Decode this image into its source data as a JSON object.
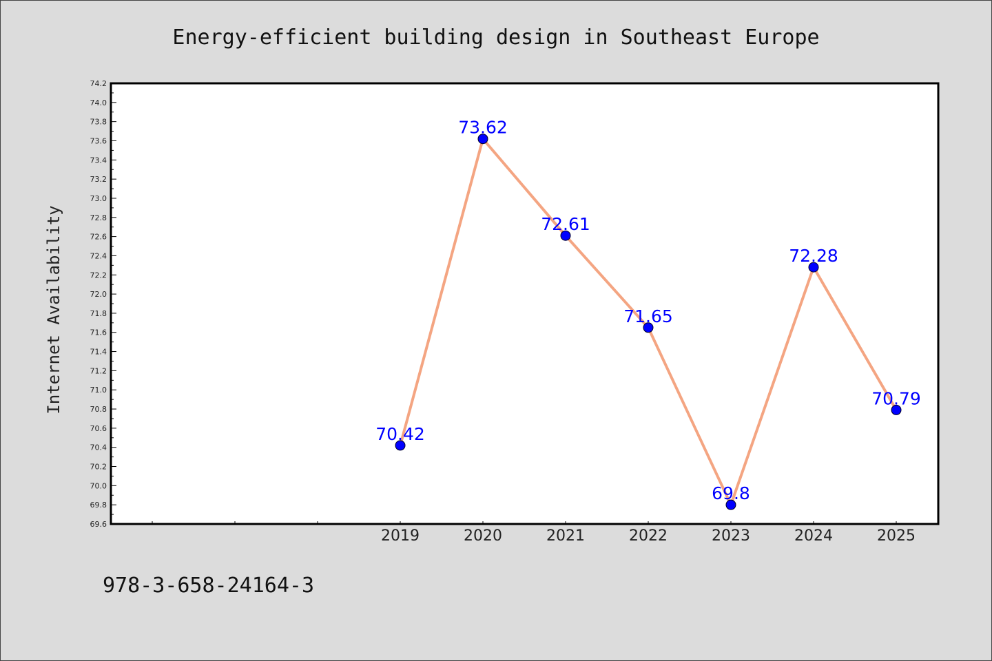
{
  "chart_data": {
    "type": "line",
    "title": "Energy-efficient building design in Southeast Europe",
    "xlabel": "",
    "ylabel": "Internet Availability",
    "categories": [
      "",
      "",
      "",
      "2019",
      "2020",
      "2021",
      "2022",
      "2023",
      "2024",
      "2025"
    ],
    "series": [
      {
        "values": [
          null,
          null,
          null,
          70.42,
          73.62,
          72.61,
          71.65,
          69.8,
          72.28,
          70.79
        ],
        "labels": [
          "",
          "",
          "",
          "70.42",
          "73.62",
          "72.61",
          "71.65",
          "69.8",
          "72.28",
          "70.79"
        ]
      }
    ],
    "ylim": [
      69.6,
      74.2
    ],
    "y_major_step": 0.2,
    "grid": false,
    "legend": "none",
    "colors": {
      "line": "#f4a582",
      "marker": "#0000ff",
      "label": "#0000ff",
      "background": "#dcdcdc",
      "plot_background": "#ffffff"
    }
  },
  "footer": {
    "isbn": "978-3-658-24164-3"
  }
}
